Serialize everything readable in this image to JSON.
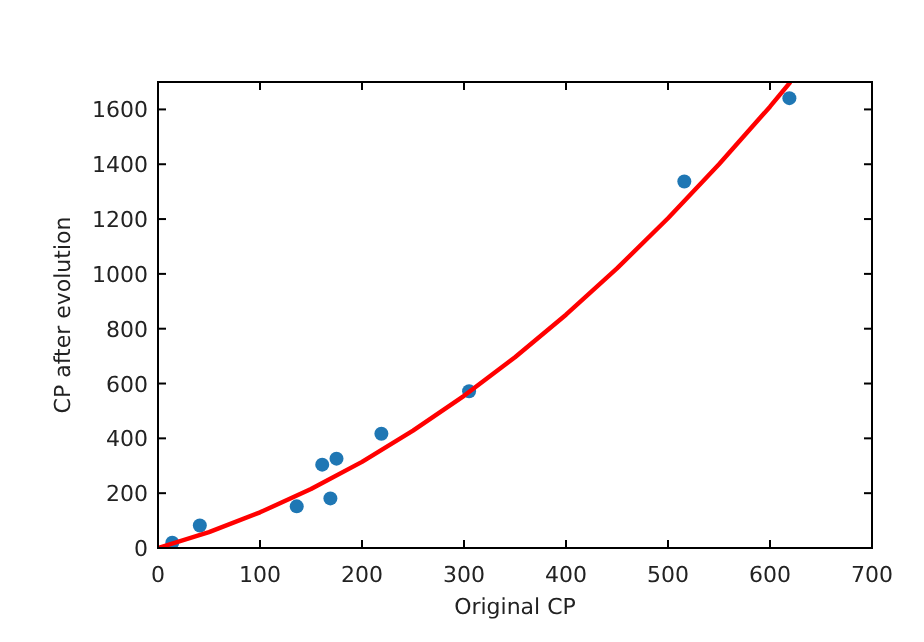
{
  "chart_data": {
    "type": "scatter",
    "xlabel": "Original CP",
    "ylabel": "CP after evolution",
    "xlim": [
      0,
      700
    ],
    "ylim": [
      0,
      1700
    ],
    "xticks": [
      0,
      100,
      200,
      300,
      400,
      500,
      600,
      700
    ],
    "yticks": [
      0,
      200,
      400,
      600,
      800,
      1000,
      1200,
      1400,
      1600
    ],
    "grid": false,
    "marker": "circle",
    "series": [
      {
        "color": "#1f77b4",
        "x": [
          14,
          41,
          136,
          161,
          169,
          175,
          219,
          305,
          516,
          619
        ],
        "values": [
          19,
          82,
          152,
          304,
          181,
          326,
          417,
          572,
          1337,
          1641
        ]
      },
      {
        "type": "line",
        "color": "#ff0000",
        "marker": "none",
        "line_style": "solid",
        "x": [
          0,
          50,
          100,
          150,
          200,
          250,
          300,
          350,
          400,
          450,
          500,
          550,
          600,
          620
        ],
        "values": [
          0,
          58,
          130,
          215,
          314,
          428,
          555,
          696,
          851,
          1020,
          1203,
          1400,
          1610,
          1700
        ]
      }
    ]
  }
}
